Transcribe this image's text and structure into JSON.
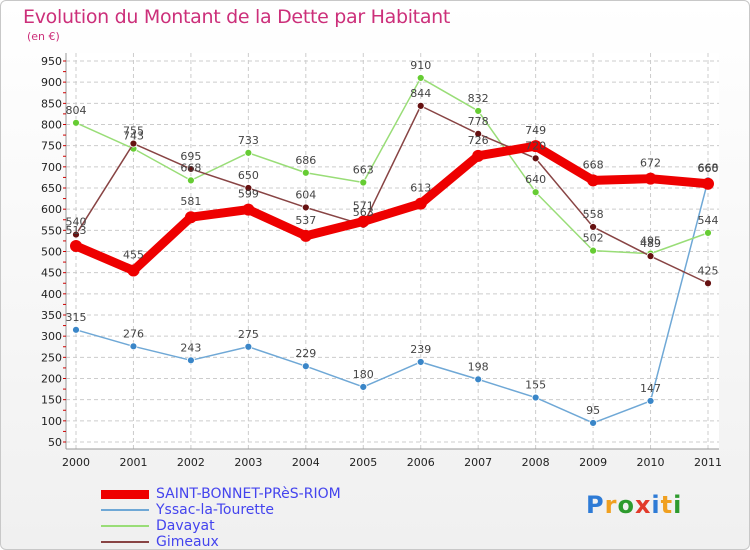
{
  "title": "Evolution du Montant de la Dette par Habitant",
  "unit": "(en €)",
  "logo": {
    "text": "Proxiti",
    "letters": [
      "P",
      "r",
      "o",
      "x",
      "i",
      "t",
      "i"
    ],
    "colors": [
      "#2e7bd6",
      "#f0a020",
      "#2e9b2e",
      "#e23a2a",
      "#2e7bd6",
      "#f0a020",
      "#2e9b2e"
    ]
  },
  "chart_data": {
    "type": "line",
    "categories": [
      "2000",
      "2001",
      "2002",
      "2003",
      "2004",
      "2005",
      "2006",
      "2007",
      "2008",
      "2009",
      "2010",
      "2011"
    ],
    "yticks": [
      50,
      100,
      150,
      200,
      250,
      300,
      350,
      400,
      450,
      500,
      550,
      600,
      650,
      700,
      750,
      800,
      850,
      900,
      950
    ],
    "ylim": [
      50,
      950
    ],
    "grid": true,
    "legend_position": "bottom-left",
    "series": [
      {
        "name": "SAINT-BONNET-PRèS-RIOM",
        "color": "#ee0000",
        "width": 9,
        "marker": 6,
        "marker_color": "#ee0000",
        "values": [
          513,
          455,
          581,
          599,
          537,
          571,
          613,
          726,
          749,
          668,
          672,
          660
        ],
        "labels": [
          "513",
          "455",
          "581",
          "599",
          "537",
          "571",
          "613",
          "726",
          "749",
          "668",
          "672",
          "660"
        ]
      },
      {
        "name": "Yssac-la-Tourette",
        "color": "#6fa8d6",
        "width": 1.5,
        "marker": 3.5,
        "marker_color": "#3a86c8",
        "values": [
          315,
          276,
          243,
          275,
          229,
          180,
          239,
          198,
          155,
          95,
          147,
          668
        ],
        "labels": [
          "315",
          "276",
          "243",
          "275",
          "229",
          "180",
          "239",
          "198",
          "155",
          "95",
          "147",
          "668"
        ]
      },
      {
        "name": "Davayat",
        "color": "#99dd77",
        "width": 1.5,
        "marker": 3.5,
        "marker_color": "#66cc33",
        "values": [
          804,
          743,
          668,
          733,
          686,
          663,
          910,
          832,
          640,
          502,
          495,
          544
        ],
        "labels": [
          "804",
          "743",
          "668",
          "733",
          "686",
          "663",
          "910",
          "832",
          "640",
          "502",
          "495",
          "544"
        ]
      },
      {
        "name": "Gimeaux",
        "color": "#884444",
        "width": 1.5,
        "marker": 3.5,
        "marker_color": "#661111",
        "values": [
          540,
          755,
          695,
          650,
          604,
          563,
          844,
          778,
          720,
          558,
          489,
          425
        ],
        "labels": [
          "540",
          "755",
          "695",
          "650",
          "604",
          "563",
          "844",
          "778",
          "720",
          "558",
          "489",
          "425"
        ]
      }
    ]
  }
}
